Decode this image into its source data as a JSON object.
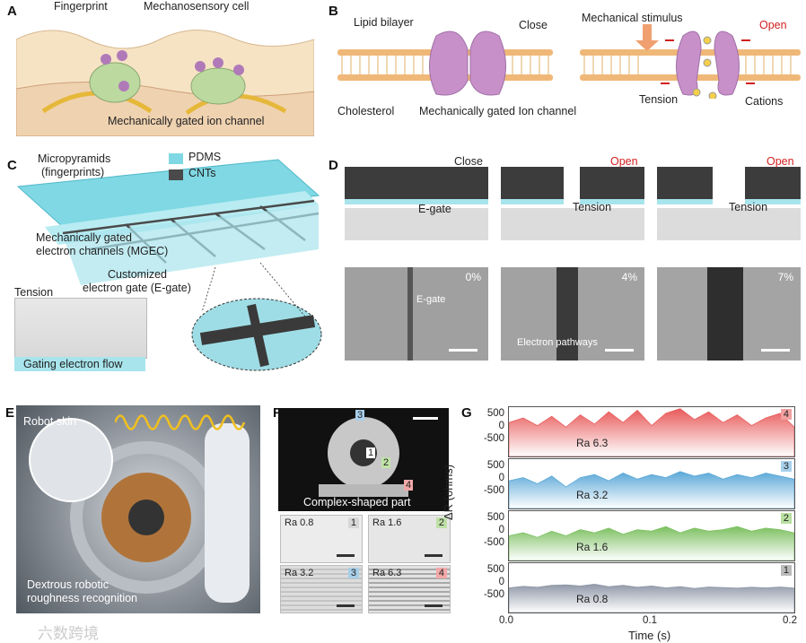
{
  "panels": {
    "A": {
      "label": "A",
      "fingerprint": "Fingerprint",
      "cell": "Mechanosensory cell",
      "channel": "Mechanically gated ion channel"
    },
    "B": {
      "label": "B",
      "lipid": "Lipid bilayer",
      "close": "Close",
      "cholesterol": "Cholesterol",
      "channel": "Mechanically gated Ion channel",
      "stimulus": "Mechanical stimulus",
      "open": "Open",
      "tension": "Tension",
      "cations": "Cations"
    },
    "C": {
      "label": "C",
      "micro1": "Micropyramids",
      "micro2": "(fingerprints)",
      "pdms": "PDMS",
      "cnts": "CNTs",
      "mgec1": "Mechanically gated",
      "mgec2": "electron channels (MGEC)",
      "egate1": "Customized",
      "egate2": "electron gate (E-gate)",
      "tension": "Tension",
      "flow": "Gating electron flow"
    },
    "D": {
      "label": "D",
      "close": "Close",
      "open1": "Open",
      "open2": "Open",
      "egate": "E-gate",
      "tension1": "Tension",
      "tension2": "Tension",
      "sem": [
        {
          "pct": "0%",
          "note": "E-gate"
        },
        {
          "pct": "4%",
          "note": "Electron pathways"
        },
        {
          "pct": "7%",
          "note": ""
        }
      ]
    },
    "E": {
      "label": "E",
      "skin": "Robot skin",
      "rec1": "Dextrous robotic",
      "rec2": "roughness recognition"
    },
    "F": {
      "label": "F",
      "part": "Complex-shaped part",
      "tiles": [
        {
          "ra": "Ra 0.8",
          "n": "1",
          "c": "#d8d8d8"
        },
        {
          "ra": "Ra 1.6",
          "n": "2",
          "c": "#bfe0a8"
        },
        {
          "ra": "Ra 3.2",
          "n": "3",
          "c": "#a8cfe8"
        },
        {
          "ra": "Ra 6.3",
          "n": "4",
          "c": "#f2a8a8"
        }
      ]
    },
    "G": {
      "label": "G"
    }
  },
  "chart_data": {
    "type": "area",
    "xlabel": "Time (s)",
    "ylabel": "ΔR (ohms)",
    "xlim": [
      0.0,
      0.2
    ],
    "xticks": [
      "0.0",
      "0.1",
      "0.2"
    ],
    "yticks": [
      "500",
      "0",
      "-500"
    ],
    "ylim": [
      -800,
      800
    ],
    "series": [
      {
        "name": "Ra 6.3",
        "index": "4",
        "color": "#e85a5a",
        "badge": "#f2a0a0",
        "x": [
          0,
          0.01,
          0.02,
          0.03,
          0.04,
          0.05,
          0.06,
          0.07,
          0.08,
          0.09,
          0.1,
          0.11,
          0.12,
          0.13,
          0.14,
          0.15,
          0.16,
          0.17,
          0.18,
          0.19,
          0.2
        ],
        "y": [
          300,
          450,
          200,
          500,
          150,
          550,
          250,
          650,
          300,
          700,
          200,
          600,
          750,
          400,
          650,
          300,
          550,
          200,
          450,
          600,
          150
        ]
      },
      {
        "name": "Ra 3.2",
        "index": "3",
        "color": "#5aa8d8",
        "badge": "#a8d0ec",
        "x": [
          0,
          0.01,
          0.02,
          0.03,
          0.04,
          0.05,
          0.06,
          0.07,
          0.08,
          0.09,
          0.1,
          0.11,
          0.12,
          0.13,
          0.14,
          0.15,
          0.16,
          0.17,
          0.18,
          0.19,
          0.2
        ],
        "y": [
          100,
          200,
          0,
          250,
          -100,
          200,
          300,
          100,
          350,
          150,
          300,
          200,
          400,
          250,
          350,
          150,
          300,
          200,
          350,
          250,
          150
        ]
      },
      {
        "name": "Ra 1.6",
        "index": "2",
        "color": "#7cc060",
        "badge": "#b8e0a0",
        "x": [
          0,
          0.01,
          0.02,
          0.03,
          0.04,
          0.05,
          0.06,
          0.07,
          0.08,
          0.09,
          0.1,
          0.11,
          0.12,
          0.13,
          0.14,
          0.15,
          0.16,
          0.17,
          0.18,
          0.19,
          0.2
        ],
        "y": [
          0,
          100,
          -50,
          150,
          0,
          200,
          100,
          250,
          50,
          200,
          150,
          300,
          100,
          250,
          150,
          200,
          300,
          150,
          250,
          200,
          100
        ]
      },
      {
        "name": "Ra 0.8",
        "index": "1",
        "color": "#9098a8",
        "badge": "#bbbbbb",
        "x": [
          0,
          0.01,
          0.02,
          0.03,
          0.04,
          0.05,
          0.06,
          0.07,
          0.08,
          0.09,
          0.1,
          0.11,
          0.12,
          0.13,
          0.14,
          0.15,
          0.16,
          0.17,
          0.18,
          0.19,
          0.2
        ],
        "y": [
          0,
          50,
          20,
          80,
          100,
          60,
          120,
          40,
          80,
          20,
          60,
          0,
          40,
          -20,
          30,
          10,
          -10,
          20,
          0,
          30,
          -10
        ]
      }
    ]
  },
  "watermark": "六数跨境"
}
